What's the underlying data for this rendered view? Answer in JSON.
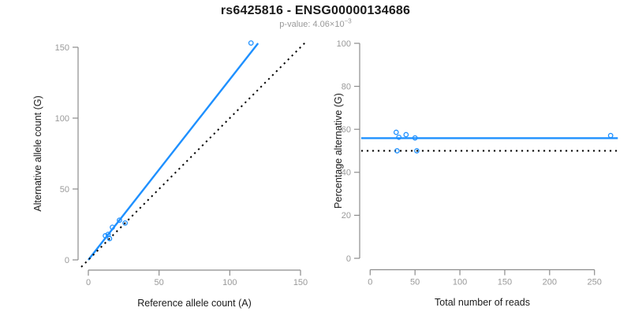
{
  "header": {
    "title": "rs6425816 - ENSG00000134686",
    "pvalue_prefix": "p-value: 4.06×10",
    "pvalue_exponent": "−3"
  },
  "colors": {
    "accent_blue": "#1E90FF",
    "reference_line": "#000000",
    "axis": "#8c8c8c",
    "tick_label": "#999999",
    "axis_title": "#1a1a1a",
    "subtitle": "#999999"
  },
  "chart_data": [
    {
      "type": "scatter",
      "name": "allele-counts-panel",
      "xlabel": "Reference allele count (A)",
      "ylabel": "Alternative allele count (G)",
      "xlim": [
        0,
        150
      ],
      "ylim": [
        0,
        150
      ],
      "x_ticks": [
        0,
        50,
        100,
        150
      ],
      "y_ticks": [
        0,
        50,
        100,
        150
      ],
      "grid": false,
      "points": [
        [
          12,
          17
        ],
        [
          14,
          18
        ],
        [
          15,
          15
        ],
        [
          17,
          23
        ],
        [
          22,
          28
        ],
        [
          26,
          26
        ],
        [
          115,
          153
        ]
      ],
      "lines": [
        {
          "name": "regression-line",
          "style": "solid",
          "color": "accent_blue",
          "from": [
            0,
            0
          ],
          "to": [
            120,
            152.8
          ]
        },
        {
          "name": "identity-line",
          "style": "dotted",
          "color": "reference_line",
          "from": [
            -5,
            -5
          ],
          "to": [
            153,
            153
          ]
        }
      ]
    },
    {
      "type": "scatter",
      "name": "percentage-panel",
      "xlabel": "Total number of reads",
      "ylabel": "Percentage alternative (G)",
      "xlim": [
        0,
        250
      ],
      "ylim": [
        0,
        100
      ],
      "x_ticks": [
        0,
        50,
        100,
        150,
        200,
        250
      ],
      "y_ticks": [
        0,
        20,
        40,
        60,
        80,
        100
      ],
      "grid": false,
      "points": [
        [
          29,
          58.6
        ],
        [
          32,
          56.3
        ],
        [
          30,
          50
        ],
        [
          40,
          57.5
        ],
        [
          50,
          56
        ],
        [
          52,
          50
        ],
        [
          268,
          57.1
        ]
      ],
      "lines": [
        {
          "name": "mean-percentage-line",
          "style": "solid",
          "color": "accent_blue",
          "from": [
            -10,
            55.9
          ],
          "to": [
            276,
            55.9
          ]
        },
        {
          "name": "fifty-percent-line",
          "style": "dotted",
          "color": "reference_line",
          "from": [
            -10,
            50
          ],
          "to": [
            276,
            50
          ]
        }
      ]
    }
  ]
}
